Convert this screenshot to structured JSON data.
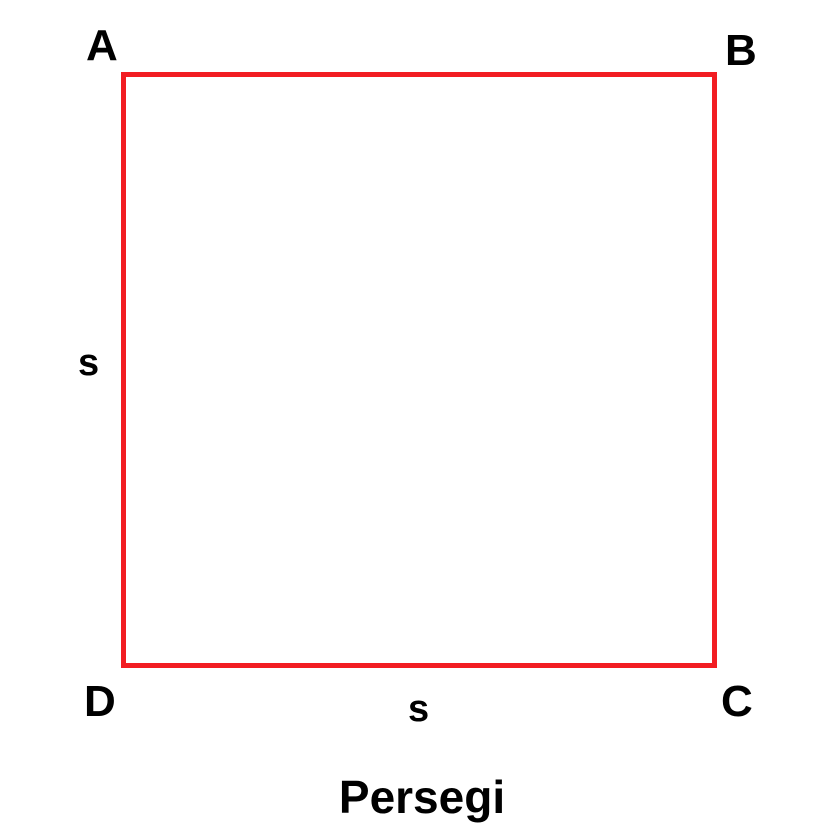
{
  "diagram": {
    "title": "Persegi",
    "shape": "square",
    "stroke_color": "#f21d22",
    "vertices": {
      "top_left": "A",
      "top_right": "B",
      "bottom_right": "C",
      "bottom_left": "D"
    },
    "side_labels": {
      "left": "s",
      "bottom": "s"
    }
  }
}
